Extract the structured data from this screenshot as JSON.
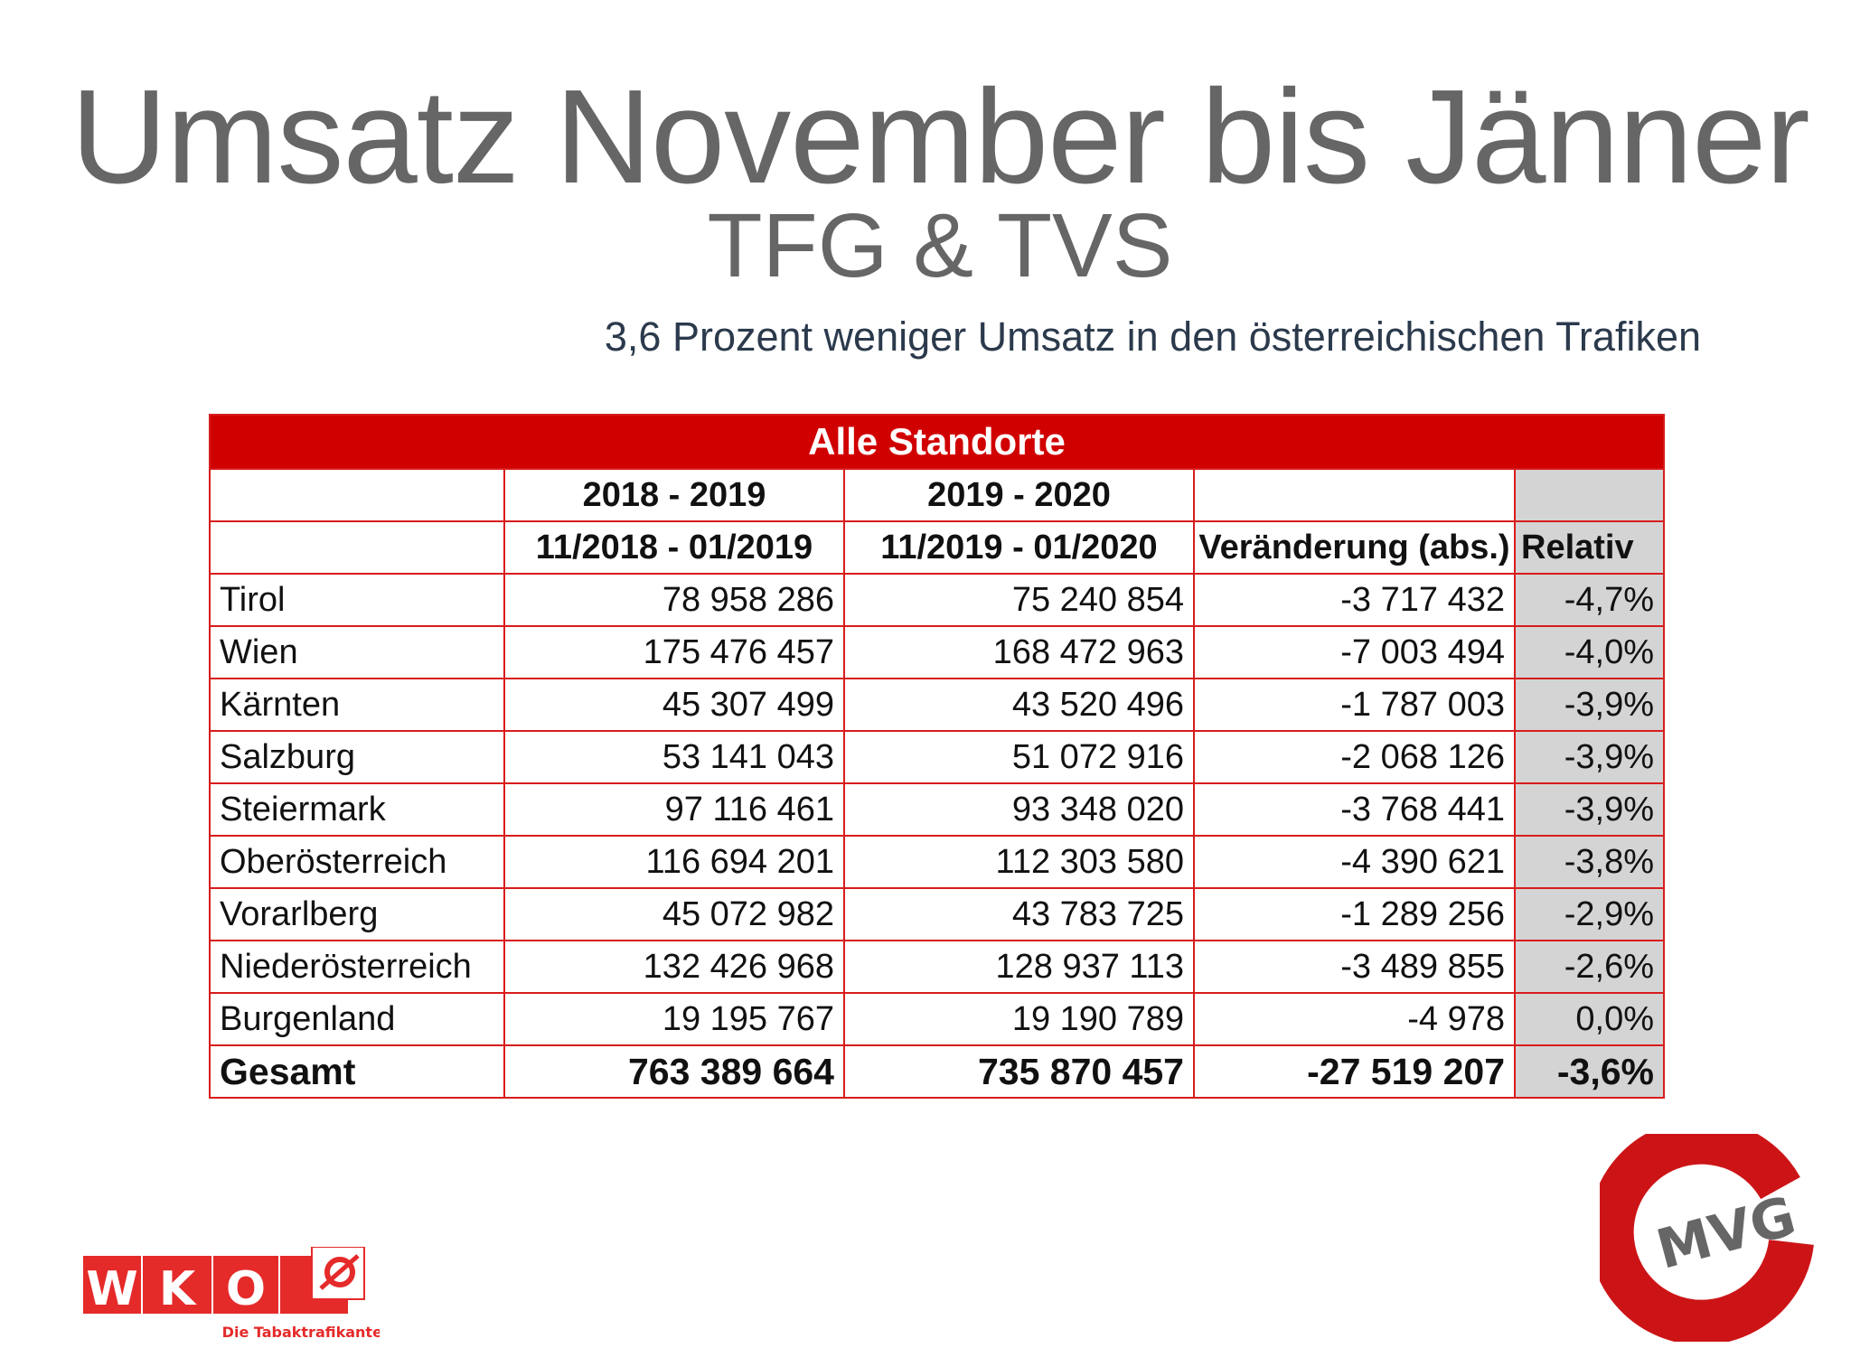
{
  "title": "Umsatz November bis Jänner",
  "subtitle": "TFG & TVS",
  "lead": "3,6 Prozent weniger Umsatz in den österreichischen Trafiken",
  "table": {
    "caption": "Alle Standorte",
    "period_headers": [
      "",
      "2018 - 2019",
      "2019 - 2020",
      "",
      ""
    ],
    "column_headers": [
      "",
      "11/2018 - 01/2019",
      "11/2019 - 01/2020",
      "Veränderung (abs.)",
      "Relativ"
    ],
    "rows": [
      [
        "Tirol",
        "78 958 286",
        "75 240 854",
        "-3 717 432",
        "-4,7%"
      ],
      [
        "Wien",
        "175 476 457",
        "168 472 963",
        "-7 003 494",
        "-4,0%"
      ],
      [
        "Kärnten",
        "45 307 499",
        "43 520 496",
        "-1 787 003",
        "-3,9%"
      ],
      [
        "Salzburg",
        "53 141 043",
        "51 072 916",
        "-2 068 126",
        "-3,9%"
      ],
      [
        "Steiermark",
        "97 116 461",
        "93 348 020",
        "-3 768 441",
        "-3,9%"
      ],
      [
        "Oberösterreich",
        "116 694 201",
        "112 303 580",
        "-4 390 621",
        "-3,8%"
      ],
      [
        "Vorarlberg",
        "45 072 982",
        "43 783 725",
        "-1 289 256",
        "-2,9%"
      ],
      [
        "Niederösterreich",
        "132 426 968",
        "128 937 113",
        "-3 489 855",
        "-2,6%"
      ],
      [
        "Burgenland",
        "19 195 767",
        "19 190 789",
        "-4 978",
        "0,0%"
      ]
    ],
    "total": [
      "Gesamt",
      "763 389 664",
      "735 870 457",
      "-27 519 207",
      "-3,6%"
    ]
  },
  "logos": {
    "wko_letters": "WKO",
    "wko_tagline": "Die Tabaktrafikanten",
    "mvg": "MVG"
  },
  "colors": {
    "accent": "#d10000",
    "title": "#666666",
    "relative_column": "#d4d4d4"
  }
}
